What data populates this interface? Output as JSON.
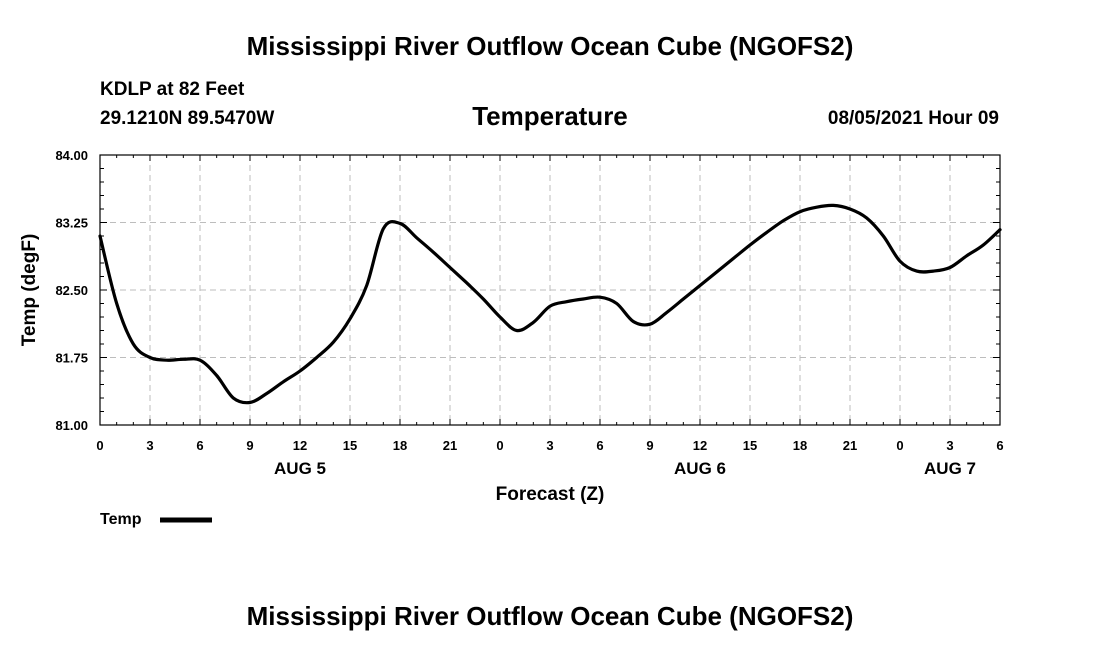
{
  "header": {
    "title": "Mississippi River Outflow Ocean Cube (NGOFS2)",
    "station": "KDLP at 82 Feet",
    "location": "29.1210N  89.5470W",
    "parameter": "Temperature",
    "datetime": "08/05/2021 Hour 09"
  },
  "footer": {
    "title": "Mississippi River Outflow Ocean Cube (NGOFS2)"
  },
  "chart_data": {
    "type": "line",
    "title": "Temperature",
    "xlabel": "Forecast (Z)",
    "ylabel": "Temp (degF)",
    "xlim": [
      0,
      54
    ],
    "ylim": [
      81.0,
      84.0
    ],
    "grid": true,
    "x_tick_values": [
      0,
      3,
      6,
      9,
      12,
      15,
      18,
      21,
      24,
      27,
      30,
      33,
      36,
      39,
      42,
      45,
      48,
      51,
      54
    ],
    "x_tick_labels": [
      "0",
      "3",
      "6",
      "9",
      "12",
      "15",
      "18",
      "21",
      "0",
      "3",
      "6",
      "9",
      "12",
      "15",
      "18",
      "21",
      "0",
      "3",
      "6"
    ],
    "y_tick_values": [
      81.0,
      81.75,
      82.5,
      83.25,
      84.0
    ],
    "y_tick_labels": [
      "81.00",
      "81.75",
      "82.50",
      "83.25",
      "84.00"
    ],
    "day_labels": [
      {
        "x": 12,
        "label": "AUG 5"
      },
      {
        "x": 36,
        "label": "AUG 6"
      },
      {
        "x": 51,
        "label": "AUG 7"
      }
    ],
    "legend": {
      "position": "bottom-left",
      "label": "Temp"
    },
    "series": [
      {
        "name": "Temp",
        "x": [
          0,
          1,
          2,
          3,
          4,
          5,
          6,
          7,
          8,
          9,
          10,
          11,
          12,
          13,
          14,
          15,
          16,
          17,
          18,
          19,
          20,
          21,
          22,
          23,
          24,
          25,
          26,
          27,
          28,
          29,
          30,
          31,
          32,
          33,
          34,
          35,
          36,
          37,
          38,
          39,
          40,
          41,
          42,
          43,
          44,
          45,
          46,
          47,
          48,
          49,
          50,
          51,
          52,
          53,
          54
        ],
        "values": [
          83.1,
          82.35,
          81.9,
          81.75,
          81.72,
          81.73,
          81.72,
          81.55,
          81.3,
          81.25,
          81.35,
          81.48,
          81.6,
          81.75,
          81.92,
          82.18,
          82.55,
          83.18,
          83.24,
          83.08,
          82.92,
          82.75,
          82.58,
          82.4,
          82.2,
          82.05,
          82.14,
          82.32,
          82.37,
          82.4,
          82.42,
          82.35,
          82.15,
          82.12,
          82.25,
          82.4,
          82.55,
          82.7,
          82.85,
          83.0,
          83.14,
          83.27,
          83.37,
          83.42,
          83.44,
          83.4,
          83.3,
          83.1,
          82.82,
          82.71,
          82.71,
          82.75,
          82.88,
          83.0,
          83.17
        ]
      }
    ]
  }
}
